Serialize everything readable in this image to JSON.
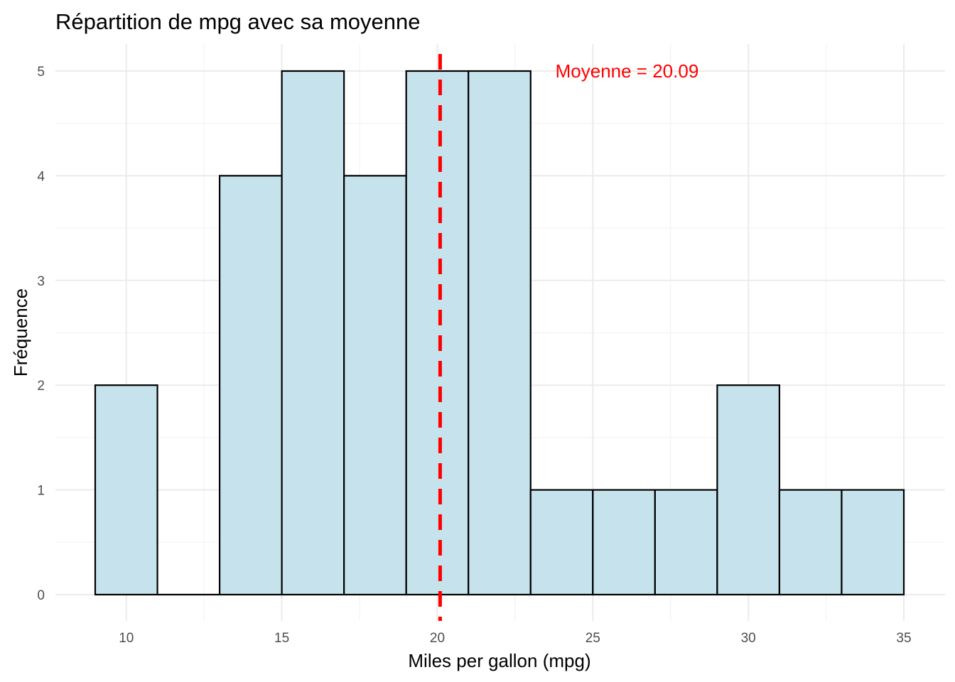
{
  "chart_data": {
    "type": "bar",
    "title": "Répartition de mpg avec sa moyenne",
    "xlabel": "Miles per gallon (mpg)",
    "ylabel": "Fréquence",
    "xlim": [
      8,
      36
    ],
    "ylim": [
      0,
      5.25
    ],
    "x_ticks": [
      10,
      15,
      20,
      25,
      30,
      35
    ],
    "y_ticks": [
      0,
      1,
      2,
      3,
      4,
      5
    ],
    "bin_width": 2,
    "bins": [
      {
        "x0": 9,
        "x1": 11,
        "count": 2
      },
      {
        "x0": 11,
        "x1": 13,
        "count": 0
      },
      {
        "x0": 13,
        "x1": 15,
        "count": 4
      },
      {
        "x0": 15,
        "x1": 17,
        "count": 5
      },
      {
        "x0": 17,
        "x1": 19,
        "count": 4
      },
      {
        "x0": 19,
        "x1": 21,
        "count": 5
      },
      {
        "x0": 21,
        "x1": 23,
        "count": 5
      },
      {
        "x0": 23,
        "x1": 25,
        "count": 1
      },
      {
        "x0": 25,
        "x1": 27,
        "count": 1
      },
      {
        "x0": 27,
        "x1": 29,
        "count": 1
      },
      {
        "x0": 29,
        "x1": 31,
        "count": 2
      },
      {
        "x0": 31,
        "x1": 33,
        "count": 1
      },
      {
        "x0": 33,
        "x1": 35,
        "count": 1
      }
    ],
    "mean_line": {
      "x": 20.09,
      "style": "dashed",
      "color": "#ff0000"
    },
    "annotation": {
      "text": "Moyenne = 20.09",
      "x": 26.1,
      "y": 5,
      "color": "#ff0000"
    },
    "bar_fill": "#c6e3ed",
    "bar_stroke": "#000000",
    "grid": true,
    "legend": "none"
  }
}
